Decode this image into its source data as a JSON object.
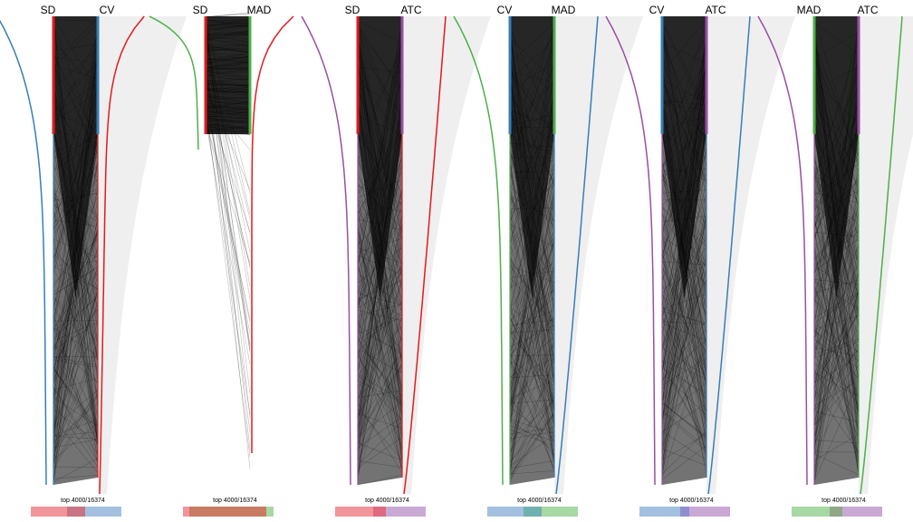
{
  "chart_data": {
    "type": "parallel-rank-comparison",
    "figure_colors": {
      "SD": "#e41a1c",
      "CV": "#377eb8",
      "MAD": "#4daf4a",
      "ATC": "#984ea3",
      "lines": "#000000",
      "background_fill": "#efefef"
    },
    "panels": [
      {
        "left": "SD",
        "right": "CV",
        "top_label": "top 4000/16374",
        "left_color": "#377eb8",
        "right_color": "#e41a1c",
        "left_axis_color": "#e41a1c",
        "right_axis_color": "#377eb8",
        "overlap_fraction": 0.3,
        "venn": {
          "left_only": 0.4,
          "both": 0.2,
          "right_only": 0.4,
          "left_fill": "#f2959a",
          "both_fill": "#c77485",
          "right_fill": "#a3c0df"
        }
      },
      {
        "left": "SD",
        "right": "MAD",
        "top_label": "top 4000/16374",
        "left_color": "#4daf4a",
        "right_color": "#e41a1c",
        "left_axis_color": "#e41a1c",
        "right_axis_color": "#4daf4a",
        "overlap_fraction": 0.92,
        "venn": {
          "left_only": 0.07,
          "both": 0.85,
          "right_only": 0.08,
          "left_fill": "#f2959a",
          "both_fill": "#c97a63",
          "right_fill": "#a8d8a4"
        }
      },
      {
        "left": "SD",
        "right": "ATC",
        "top_label": "top 4000/16374",
        "left_color": "#984ea3",
        "right_color": "#e41a1c",
        "left_axis_color": "#e41a1c",
        "right_axis_color": "#984ea3",
        "overlap_fraction": 0.2,
        "venn": {
          "left_only": 0.42,
          "both": 0.14,
          "right_only": 0.44,
          "left_fill": "#f2959a",
          "both_fill": "#dd6a7f",
          "right_fill": "#c9a8d4"
        }
      },
      {
        "left": "CV",
        "right": "MAD",
        "top_label": "top 4000/16374",
        "left_color": "#4daf4a",
        "right_color": "#377eb8",
        "left_axis_color": "#377eb8",
        "right_axis_color": "#4daf4a",
        "overlap_fraction": 0.25,
        "venn": {
          "left_only": 0.4,
          "both": 0.2,
          "right_only": 0.4,
          "left_fill": "#a3c0df",
          "both_fill": "#6fb1b0",
          "right_fill": "#a8d8a4"
        }
      },
      {
        "left": "CV",
        "right": "ATC",
        "top_label": "top 4000/16374",
        "left_color": "#984ea3",
        "right_color": "#377eb8",
        "left_axis_color": "#377eb8",
        "right_axis_color": "#984ea3",
        "overlap_fraction": 0.15,
        "venn": {
          "left_only": 0.45,
          "both": 0.1,
          "right_only": 0.45,
          "left_fill": "#a3c0df",
          "both_fill": "#8f8fd0",
          "right_fill": "#c9a8d4"
        }
      },
      {
        "left": "MAD",
        "right": "ATC",
        "top_label": "top 4000/16374",
        "left_color": "#984ea3",
        "right_color": "#4daf4a",
        "left_axis_color": "#4daf4a",
        "right_axis_color": "#984ea3",
        "overlap_fraction": 0.2,
        "venn": {
          "left_only": 0.42,
          "both": 0.14,
          "right_only": 0.44,
          "left_fill": "#a8d8a4",
          "both_fill": "#8fa788",
          "right_fill": "#c9a8d4"
        }
      }
    ]
  }
}
